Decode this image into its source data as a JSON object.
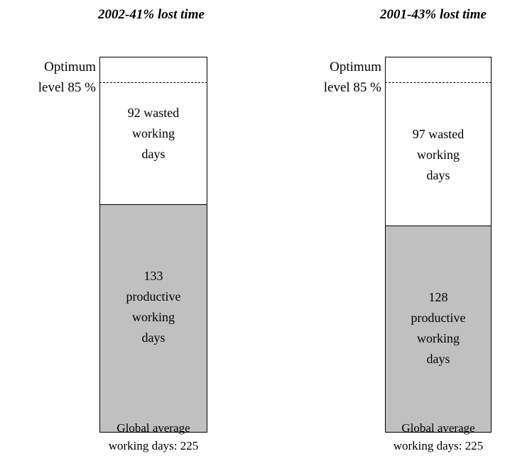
{
  "panels": [
    {
      "title": "2002-41% lost time",
      "optimum": [
        "Optimum",
        "level 85 %"
      ],
      "wasted": [
        "92 wasted",
        "working",
        "days"
      ],
      "productive": [
        "133",
        "productive",
        "working",
        "days"
      ],
      "footer": [
        "Global average",
        "working days:  225"
      ]
    },
    {
      "title": "2001-43% lost time",
      "optimum": [
        "Optimum",
        "level 85 %"
      ],
      "wasted": [
        "97 wasted",
        "working",
        "days"
      ],
      "productive": [
        "128",
        "productive",
        "working",
        "days"
      ],
      "footer": [
        "Global average",
        "working days:  225"
      ]
    }
  ]
}
